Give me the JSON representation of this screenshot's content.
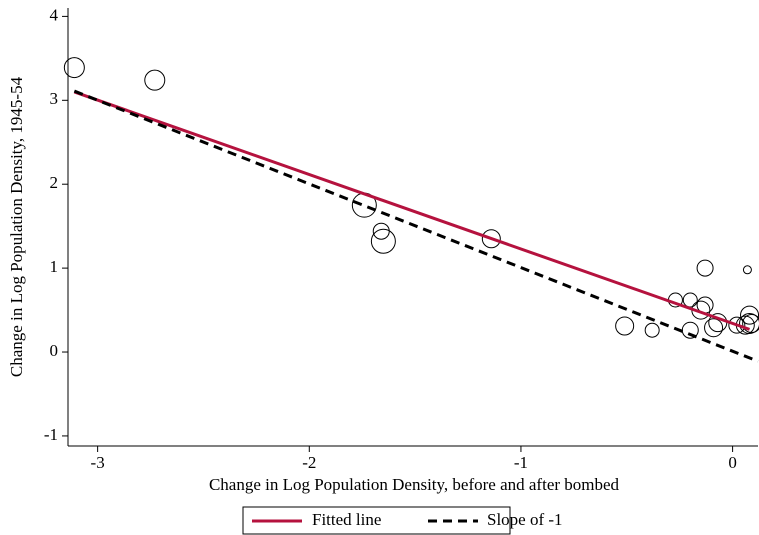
{
  "chart_data": {
    "type": "scatter",
    "xlabel": "Change in Log Population Density, before and after bombed",
    "ylabel": "Change in Log Population Density, 1945-54",
    "xlim": [
      -3.14,
      0.12
    ],
    "ylim": [
      -1.12,
      4.1
    ],
    "xticks": [
      -3,
      -2,
      -1,
      0
    ],
    "yticks": [
      -1,
      0,
      1,
      2,
      3,
      4
    ],
    "points": {
      "x": [
        -3.11,
        -2.73,
        -1.74,
        -1.66,
        -1.65,
        -1.14,
        -0.51,
        -0.38,
        -0.27,
        -0.2,
        -0.2,
        -0.15,
        -0.13,
        -0.13,
        -0.09,
        -0.07,
        0.02,
        0.06,
        0.07,
        0.08,
        0.08,
        0.09
      ],
      "y": [
        3.39,
        3.24,
        1.75,
        1.44,
        1.32,
        1.35,
        0.31,
        0.26,
        0.62,
        0.62,
        0.26,
        0.5,
        1.0,
        0.56,
        0.29,
        0.35,
        0.32,
        0.32,
        0.98,
        0.44,
        0.34,
        0.34
      ],
      "sizes": [
        10,
        10,
        12,
        8,
        12,
        9,
        9,
        7,
        7,
        7,
        8,
        9,
        8,
        8,
        9,
        9,
        8,
        9,
        4,
        9,
        10,
        9
      ]
    },
    "lines": [
      {
        "name": "Fitted line",
        "color": "#b5123e",
        "dash": false,
        "x": [
          -3.11,
          0.08
        ],
        "values": [
          3.1,
          0.27
        ]
      },
      {
        "name": "Slope of -1",
        "color": "#000000",
        "dash": true,
        "x": [
          -3.11,
          0.12
        ],
        "values": [
          3.11,
          -0.11
        ]
      }
    ]
  }
}
